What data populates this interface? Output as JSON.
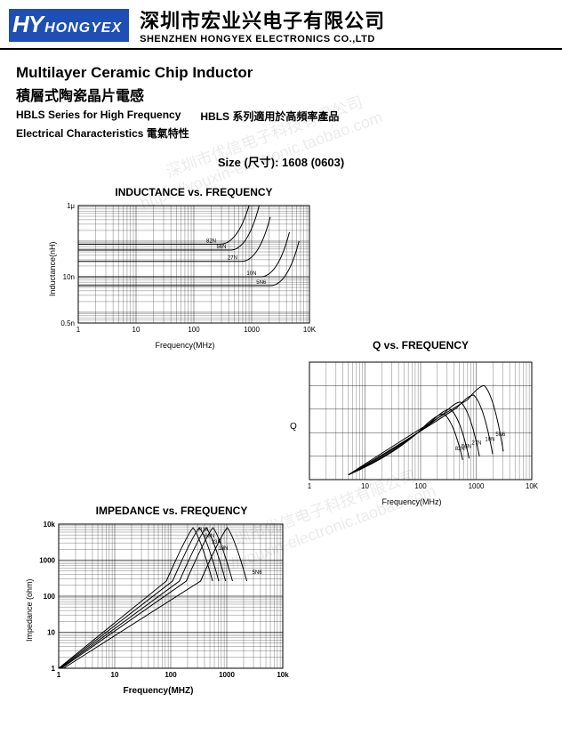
{
  "header": {
    "logo_hy": "HY",
    "logo_hongyex": "HONGYEX",
    "company_cn": "深圳市宏业兴电子有限公司",
    "company_en": "SHENZHEN HONGYEX ELECTRONICS CO.,LTD"
  },
  "titles": {
    "title_en": "Multilayer Ceramic Chip Inductor",
    "title_cn": "積層式陶瓷晶片電感",
    "series_en": "HBLS Series for High Frequency",
    "series_cn": "HBLS 系列適用於高頻率產品",
    "elec": "Electrical Characteristics 電氣特性",
    "size_line": "Size (尺寸): 1608 (0603)"
  },
  "watermark": {
    "text1": "深圳市优信电子科技有限公司",
    "text2": "https://youxin-electronic.taobao.com"
  },
  "chart1": {
    "title": "INDUCTANCE vs. FREQUENCY",
    "ylabel": "Inductance(nH)",
    "xlabel": "Frequency(MHz)",
    "type": "line",
    "xscale": "log",
    "yscale": "log",
    "xlim": [
      1,
      10000
    ],
    "ylim": [
      0.5,
      1000
    ],
    "xticks": [
      1,
      10,
      100,
      1000,
      10000
    ],
    "xtick_labels": [
      "1",
      "10",
      "100",
      "1000",
      "10K"
    ],
    "yticks": [
      0.5,
      10,
      1000
    ],
    "ytick_labels": [
      "0.5n",
      "10n",
      "1μ"
    ],
    "background_color": "#ffffff",
    "grid_color": "#000000",
    "curve_color": "#000000",
    "curves": [
      {
        "label": "82N",
        "y_flat": 82,
        "x_break": 300
      },
      {
        "label": "56N",
        "y_flat": 56,
        "x_break": 450
      },
      {
        "label": "27N",
        "y_flat": 27,
        "x_break": 700
      },
      {
        "label": "10N",
        "y_flat": 10,
        "x_break": 1500
      },
      {
        "label": "5N6",
        "y_flat": 5.6,
        "x_break": 2200
      }
    ]
  },
  "chart2": {
    "title": "Q vs. FREQUENCY",
    "ylabel": "Q",
    "xlabel": "Frequency(MHz)",
    "type": "line",
    "xscale": "log",
    "yscale": "linear",
    "xlim": [
      1,
      10000
    ],
    "ylim": [
      0,
      50
    ],
    "xticks": [
      1,
      10,
      100,
      1000,
      10000
    ],
    "xtick_labels": [
      "1",
      "10",
      "100",
      "1000",
      "10K"
    ],
    "background_color": "#ffffff",
    "grid_color": "#000000",
    "curve_color": "#000000",
    "curves": [
      {
        "label": "82N",
        "peak_x": 260,
        "peak_q": 28
      },
      {
        "label": "56N",
        "peak_x": 340,
        "peak_q": 30
      },
      {
        "label": "27N",
        "peak_x": 520,
        "peak_q": 33
      },
      {
        "label": "10N",
        "peak_x": 900,
        "peak_q": 36
      },
      {
        "label": "5N6",
        "peak_x": 1400,
        "peak_q": 40
      }
    ]
  },
  "chart3": {
    "title": "IMPEDANCE vs. FREQUENCY",
    "ylabel": "Impedance (ohm)",
    "xlabel": "Frequency(MHZ)",
    "type": "line",
    "xscale": "log",
    "yscale": "log",
    "xlim": [
      1,
      10000
    ],
    "ylim": [
      1,
      10000
    ],
    "xticks": [
      1,
      10,
      100,
      1000,
      10000
    ],
    "xtick_labels": [
      "1",
      "10",
      "100",
      "1000",
      "10k"
    ],
    "yticks": [
      1,
      10,
      100,
      1000,
      10000
    ],
    "ytick_labels": [
      "1",
      "10",
      "100",
      "1000",
      "10k"
    ],
    "background_color": "#ffffff",
    "grid_color": "#000000",
    "curve_color": "#000000",
    "curves": [
      {
        "label": "R10",
        "offset": 0
      },
      {
        "label": "68N",
        "offset": 20
      },
      {
        "label": "33N",
        "offset": 42
      },
      {
        "label": "18N",
        "offset": 64
      },
      {
        "label": "5N6",
        "offset": 110
      }
    ]
  }
}
